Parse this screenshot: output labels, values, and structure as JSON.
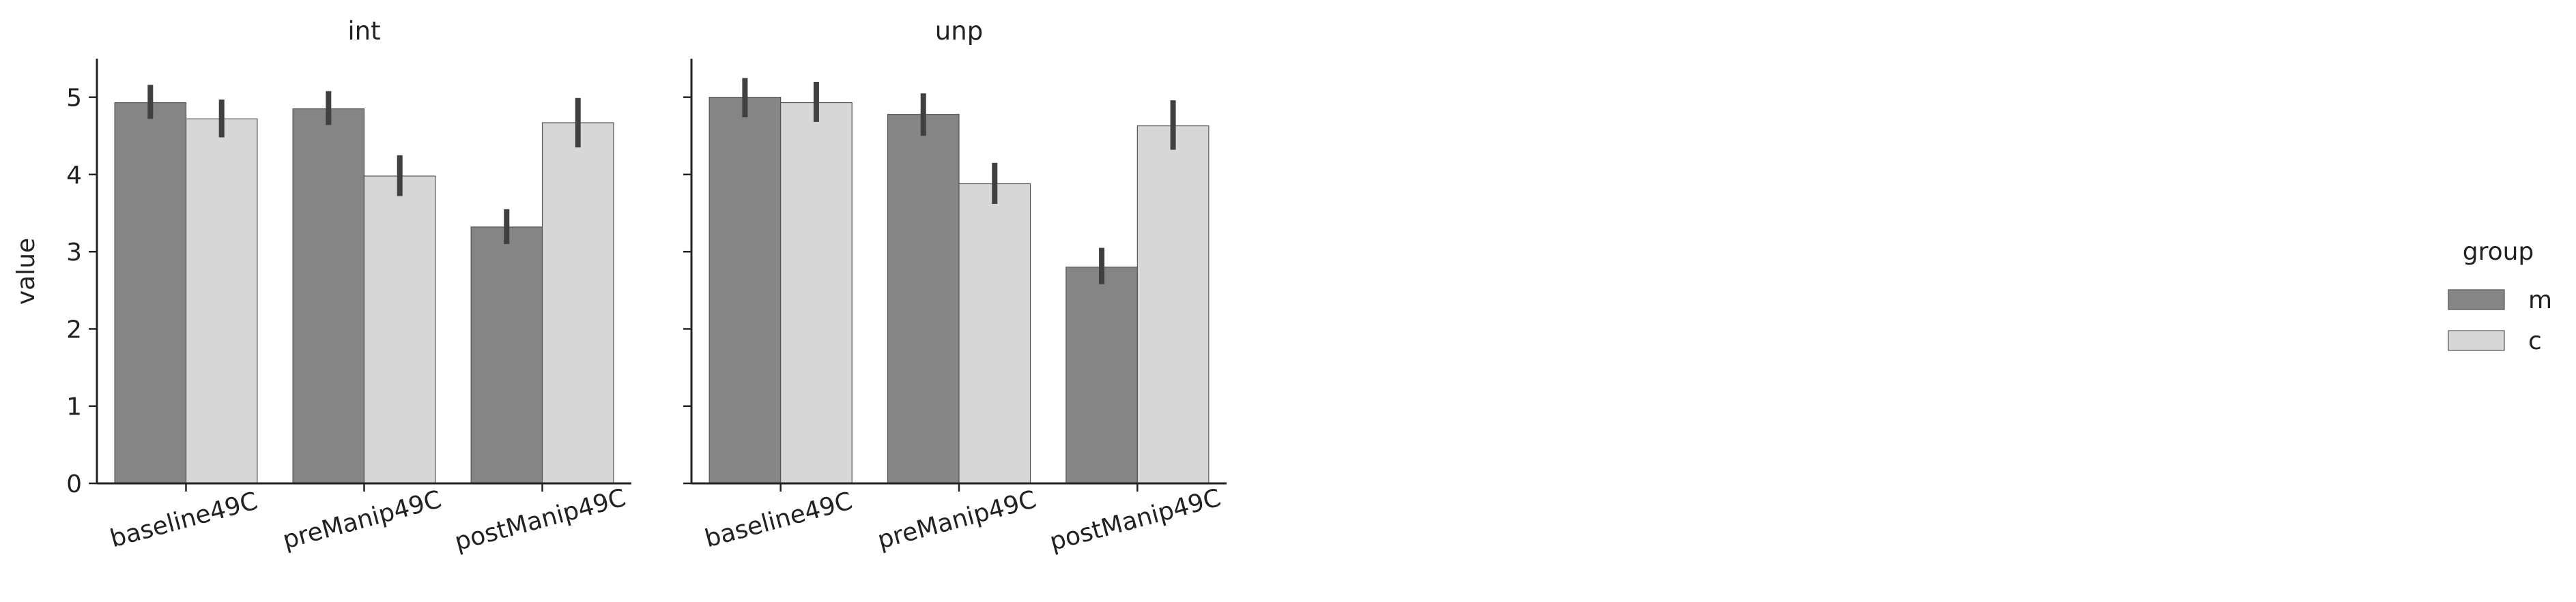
{
  "figure": {
    "y_label": "value",
    "legend_title": "group"
  },
  "colors": {
    "m": "#858585",
    "c": "#d7d7d7",
    "errorbar": "#404040",
    "axis": "#222222"
  },
  "chart_data": [
    {
      "type": "bar",
      "title": "int",
      "xlabel": "",
      "ylabel": "value",
      "ylim": [
        0,
        5.5
      ],
      "yticks": [
        "0",
        "1",
        "2",
        "3",
        "4",
        "5"
      ],
      "categories": [
        "baseline49C",
        "preManip49C",
        "postManip49C"
      ],
      "series": [
        {
          "name": "m",
          "values": [
            4.93,
            4.85,
            3.32
          ],
          "ci_low": [
            4.72,
            4.64,
            3.1
          ],
          "ci_high": [
            5.16,
            5.08,
            3.55
          ]
        },
        {
          "name": "c",
          "values": [
            4.72,
            3.98,
            4.67
          ],
          "ci_low": [
            4.48,
            3.72,
            4.35
          ],
          "ci_high": [
            4.97,
            4.25,
            4.99
          ]
        }
      ],
      "legend": "right",
      "grid": false
    },
    {
      "type": "bar",
      "title": "unp",
      "xlabel": "",
      "ylabel": "",
      "ylim": [
        0,
        5.5
      ],
      "yticks": [
        "0",
        "1",
        "2",
        "3",
        "4",
        "5"
      ],
      "categories": [
        "baseline49C",
        "preManip49C",
        "postManip49C"
      ],
      "series": [
        {
          "name": "m",
          "values": [
            5.0,
            4.78,
            2.8
          ],
          "ci_low": [
            4.74,
            4.5,
            2.58
          ],
          "ci_high": [
            5.25,
            5.05,
            3.05
          ]
        },
        {
          "name": "c",
          "values": [
            4.93,
            3.88,
            4.63
          ],
          "ci_low": [
            4.68,
            3.62,
            4.32
          ],
          "ci_high": [
            5.2,
            4.15,
            4.96
          ]
        }
      ],
      "legend": "right",
      "grid": false
    }
  ]
}
